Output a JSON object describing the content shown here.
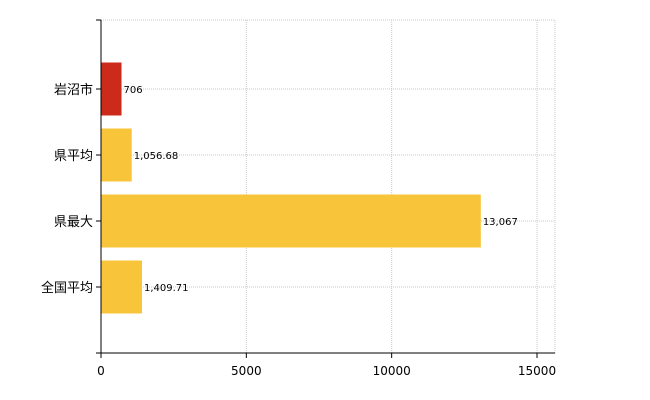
{
  "chart_data": {
    "type": "bar",
    "orientation": "horizontal",
    "categories": [
      "岩沼市",
      "県平均",
      "県最大",
      "全国平均"
    ],
    "values": [
      706,
      1056.68,
      13067,
      1409.71
    ],
    "value_labels": [
      "706",
      "1,056.68",
      "13,067",
      "1,409.71"
    ],
    "bar_colors": [
      "#cc2a1a",
      "#f8c53a",
      "#f8c53a",
      "#f8c53a"
    ],
    "xlim": [
      0,
      15000
    ],
    "x_ticks": [
      0,
      5000,
      10000,
      15000
    ],
    "x_tick_labels": [
      "0",
      "5000",
      "10000",
      "15000"
    ],
    "grid": "x-dotted",
    "legend": "none"
  }
}
